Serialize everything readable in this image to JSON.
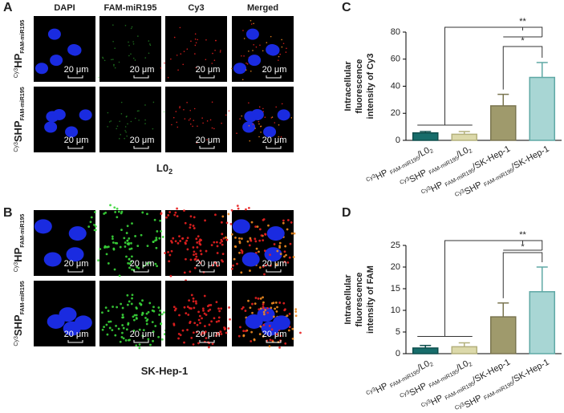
{
  "panels": [
    {
      "label": "A",
      "columns": [
        "DAPI",
        "FAM-miR195",
        "Cy3",
        "Merged"
      ],
      "rows": [
        {
          "sup": "Cy3",
          "main": "HP",
          "sub": "FAM-miR195"
        },
        {
          "sup": "Cy3",
          "main": "SHP",
          "sub": "FAM-miR195"
        }
      ],
      "caption": {
        "main": "L0",
        "sub": "2"
      },
      "scale_bar": "20 μm"
    },
    {
      "label": "B",
      "rows": [
        {
          "sup": "Cy3",
          "main": "HP",
          "sub": "FAM-miR195"
        },
        {
          "sup": "Cy3",
          "main": "SHP",
          "sub": "FAM-miR195"
        }
      ],
      "caption": {
        "main": "SK-Hep-1"
      },
      "scale_bar": "20 μm"
    }
  ],
  "chart_data": [
    {
      "type": "bar",
      "panel_label": "C",
      "y_label": [
        "Intracellular",
        "fluorescence",
        "intensity of Cy3"
      ],
      "categories": [
        {
          "sup": "Cy3",
          "main": "HP ",
          "sub": "FAM-miR195",
          "rest": "/L0",
          "rest_sub": "2"
        },
        {
          "sup": "Cy3",
          "main": "SHP ",
          "sub": "FAM-miR195",
          "rest": "/L0",
          "rest_sub": "2"
        },
        {
          "sup": "Cy3",
          "main": "HP ",
          "sub": "FAM-miR195",
          "rest": "/SK-Hep-1"
        },
        {
          "sup": "Cy3",
          "main": "SHP ",
          "sub": "FAM-miR195",
          "rest": "/SK-Hep-1"
        }
      ],
      "series": [
        {
          "values": [
            5.5,
            4.5,
            25.5,
            46.5
          ],
          "errors": [
            1,
            2,
            8.5,
            11
          ],
          "colors": [
            "#176d6b",
            "#dcd9aa",
            "#9f9a6c",
            "#a8d6d4"
          ],
          "edge_colors": [
            "#0f4f4d",
            "#b3b07c",
            "#7a7550",
            "#5fa8a5"
          ]
        }
      ],
      "ylim": [
        0,
        80
      ],
      "yticks": [
        0,
        20,
        40,
        60,
        80
      ],
      "annotations": [
        {
          "text": "**"
        },
        {
          "text": "*"
        }
      ]
    },
    {
      "type": "bar",
      "panel_label": "D",
      "y_label": [
        "Intracellular",
        "fluorescence",
        "intensity of FAM"
      ],
      "categories": [
        {
          "sup": "Cy3",
          "main": "HP ",
          "sub": "FAM-miR195",
          "rest": "/L0",
          "rest_sub": "2"
        },
        {
          "sup": "Cy3",
          "main": "SHP ",
          "sub": "FAM-miR195",
          "rest": "/L0",
          "rest_sub": "2"
        },
        {
          "sup": "Cy3",
          "main": "HP ",
          "sub": "FAM-miR195",
          "rest": "/SK-Hep-1"
        },
        {
          "sup": "Cy3",
          "main": "SHP ",
          "sub": "FAM-miR195",
          "rest": "/SK-Hep-1"
        }
      ],
      "series": [
        {
          "values": [
            1.3,
            1.6,
            8.5,
            14.3
          ],
          "errors": [
            0.6,
            0.9,
            3.2,
            5.7
          ],
          "colors": [
            "#176d6b",
            "#dcd9aa",
            "#9f9a6c",
            "#a8d6d4"
          ],
          "edge_colors": [
            "#0f4f4d",
            "#b3b07c",
            "#7a7550",
            "#5fa8a5"
          ]
        }
      ],
      "ylim": [
        0,
        25
      ],
      "yticks": [
        0,
        5,
        10,
        15,
        20,
        25
      ],
      "annotations": [
        {
          "text": "**"
        },
        {
          "text": "*"
        }
      ]
    }
  ]
}
